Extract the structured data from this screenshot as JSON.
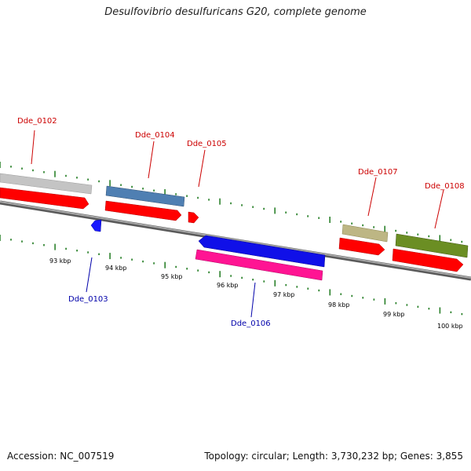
{
  "title": "Desulfovibrio desulfuricans G20, complete genome",
  "footer": {
    "accession": "Accession: NC_007519",
    "summary": "Topology: circular; Length: 3,730,232 bp; Genes: 3,855"
  },
  "colors": {
    "forward_label": "#cc0000",
    "reverse_label": "#0000aa",
    "ticks": "#1e7a1e",
    "backbone": "#808080"
  },
  "scale_labels": [
    "93 kbp",
    "94 kbp",
    "95 kbp",
    "96 kbp",
    "97 kbp",
    "98 kbp",
    "99 kbp",
    "100 kbp"
  ],
  "genes": [
    {
      "id": "Dde_0102",
      "strand": "+",
      "feature_color": "#c4c4c4"
    },
    {
      "id": "Dde_0103",
      "strand": "-",
      "feature_color": "#1a1aff"
    },
    {
      "id": "Dde_0104",
      "strand": "+",
      "feature_color": "#4f7fb2"
    },
    {
      "id": "Dde_0105",
      "strand": "+",
      "feature_color": "#ff0000"
    },
    {
      "id": "Dde_0106",
      "strand": "-",
      "feature_color": "#1010e8"
    },
    {
      "id": "Dde_0107",
      "strand": "+",
      "feature_color": "#bdb684"
    },
    {
      "id": "Dde_0108",
      "strand": "+",
      "feature_color": "#6b8e23"
    }
  ]
}
